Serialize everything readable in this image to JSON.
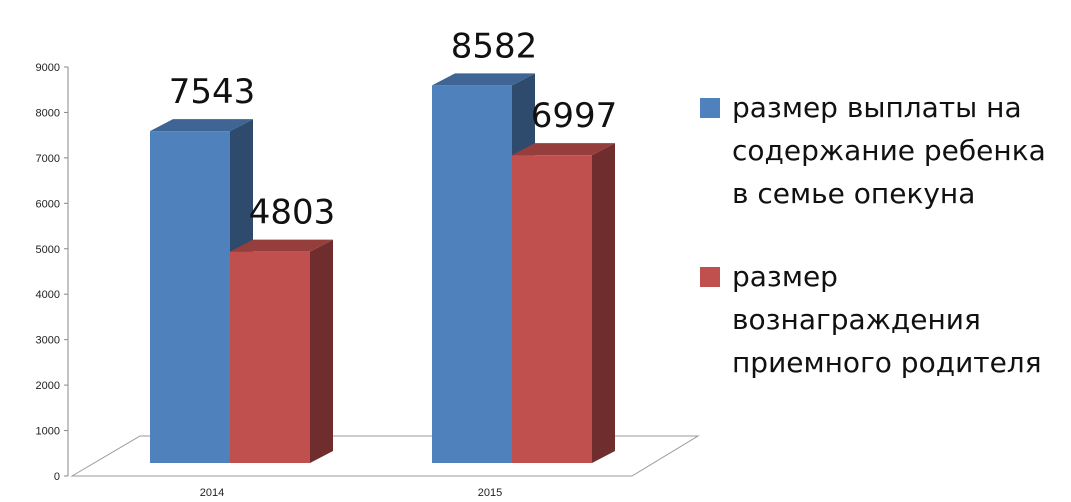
{
  "chart_data": {
    "type": "bar",
    "categories": [
      "2014",
      "2015"
    ],
    "series": [
      {
        "name": "размер выплаты на содержание ребенка в семье опекуна",
        "values": [
          7543,
          8582
        ],
        "color": "#4F81BD"
      },
      {
        "name": "размер вознаграждения приемного родителя",
        "values": [
          4803,
          6997
        ],
        "color": "#C0504D"
      }
    ],
    "data_labels": [
      "7543",
      "4803",
      "8582",
      "6997"
    ],
    "y_ticks": [
      "0",
      "1000",
      "2000",
      "3000",
      "4000",
      "5000",
      "6000",
      "7000",
      "8000",
      "9000"
    ],
    "ylim": [
      0,
      9000
    ],
    "title": "",
    "xlabel": "",
    "ylabel": "",
    "legend_position": "right",
    "grid": false,
    "style": "3d-clustered-column"
  }
}
